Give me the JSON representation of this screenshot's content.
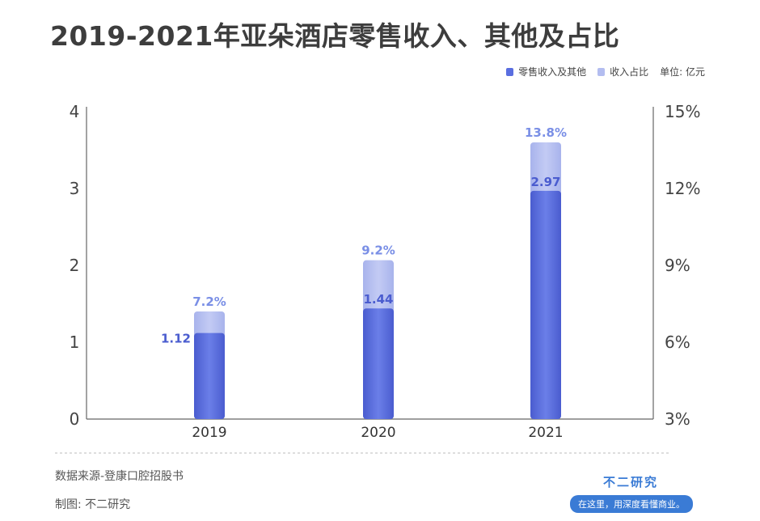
{
  "title": "2019-2021年亚朵酒店零售收入、其他及占比",
  "legend": {
    "series1": "零售收入及其他",
    "series2": "收入占比",
    "unit": "单位: 亿元"
  },
  "colors": {
    "revenue_bar": "#5a6ee0",
    "share_bar": "#b3bdf0",
    "revenue_label": "#4a5ccf",
    "share_label": "#7a8fe6",
    "axis": "#666666"
  },
  "chart_data": {
    "type": "bar",
    "categories": [
      "2019",
      "2020",
      "2021"
    ],
    "series": [
      {
        "name": "零售收入及其他",
        "values": [
          1.12,
          1.44,
          2.97
        ],
        "labels": [
          "1.12",
          "1.44",
          "2.97"
        ],
        "axis": "left"
      },
      {
        "name": "收入占比",
        "values": [
          7.2,
          9.2,
          13.8
        ],
        "labels": [
          "7.2%",
          "9.2%",
          "13.8%"
        ],
        "axis": "right"
      }
    ],
    "left_axis": {
      "range": [
        0,
        4
      ],
      "ticks": [
        "0",
        "1",
        "2",
        "3",
        "4"
      ]
    },
    "right_axis": {
      "range": [
        3,
        15
      ],
      "ticks": [
        "3%",
        "6%",
        "9%",
        "12%",
        "15%"
      ]
    },
    "grid": false,
    "legend_position": "top-right"
  },
  "footer": {
    "source": "数据来源-登康口腔招股书",
    "author": "制图: 不二研究"
  },
  "brand": {
    "name": "不二研究",
    "slogan": "在这里，用深度看懂商业。"
  }
}
